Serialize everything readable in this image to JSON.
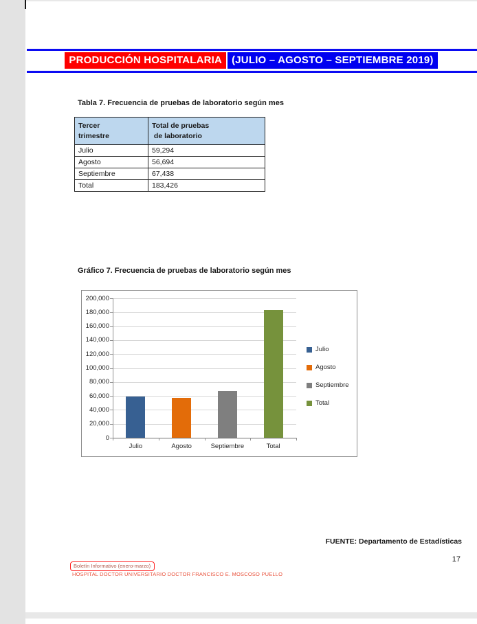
{
  "page": {
    "banner": {
      "left": "PRODUCCIÓN HOSPITALARIA ",
      "right": "(JULIO – AGOSTO – SEPTIEMBRE 2019)"
    },
    "chart_section_title": "Gráfico 7. Frecuencia de pruebas de laboratorio según mes",
    "source_note": "FUENTE: Departamento de Estadísticas",
    "page_number": "17",
    "footer": {
      "boletin": "Boletín Informativo (enero-marzo)",
      "hospital": "HOSPITAL DOCTOR UNIVERSITARIO DOCTOR FRANCISCO E. MOSCOSO PUELLO"
    }
  },
  "table": {
    "title": "Tabla 7. Frecuencia de pruebas de laboratorio según mes",
    "header": {
      "col1": "Tercer\ntrimestre",
      "col2": "Total de pruebas\n de laboratorio"
    },
    "rows": [
      {
        "label": "Julio",
        "value": "59,294"
      },
      {
        "label": "Agosto",
        "value": "56,694"
      },
      {
        "label": "Septiembre",
        "value": "67,438"
      },
      {
        "label": "Total",
        "value": "183,426"
      }
    ]
  },
  "chart_data": {
    "type": "bar",
    "title": "Gráfico 7. Frecuencia de pruebas de laboratorio según mes",
    "categories": [
      "Julio",
      "Agosto",
      "Septiembre",
      "Total"
    ],
    "values": [
      59294,
      56694,
      67438,
      183426
    ],
    "colors": [
      "#376092",
      "#e36c09",
      "#7f7f7f",
      "#76923c"
    ],
    "legend": [
      "Julio",
      "Agosto",
      "Septiembre",
      "Total"
    ],
    "legend_position": "right",
    "grid": true,
    "xlabel": "",
    "ylabel": "",
    "ylim": [
      0,
      200000
    ],
    "ytick_step": 20000,
    "ytick_labels": [
      "0",
      "20,000",
      "40,000",
      "60,000",
      "80,000",
      "100,000",
      "120,000",
      "140,000",
      "160,000",
      "180,000",
      "200,000"
    ]
  }
}
